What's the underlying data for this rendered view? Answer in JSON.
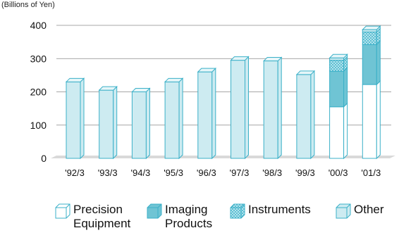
{
  "chart_data": {
    "type": "bar",
    "stacked": true,
    "unit_label": "(Billions of Yen)",
    "categories": [
      "'92/3",
      "'93/3",
      "'94/3",
      "'95/3",
      "'96/3",
      "'97/3",
      "'98/3",
      "'99/3",
      "'00/3",
      "'01/3"
    ],
    "y_ticks": [
      "400",
      "300",
      "200",
      "100",
      "0"
    ],
    "ylim": [
      0,
      400
    ],
    "grid": true,
    "legend_position": "bottom",
    "series": [
      {
        "name": "Precision Equipment",
        "fill": "#ffffff",
        "values": [
          0,
          0,
          0,
          0,
          0,
          0,
          0,
          0,
          155,
          222
        ]
      },
      {
        "name": "Imaging Products",
        "fill": "#6fc4d4",
        "values": [
          0,
          0,
          0,
          0,
          0,
          0,
          0,
          0,
          107,
          120
        ]
      },
      {
        "name": "Instruments",
        "fill": "#b6e3ec",
        "pattern": "hatch",
        "values": [
          0,
          0,
          0,
          0,
          0,
          0,
          0,
          0,
          33,
          38
        ]
      },
      {
        "name": "Other",
        "fill": "#cdebf1",
        "values": [
          230,
          205,
          200,
          230,
          260,
          295,
          293,
          252,
          7,
          7
        ]
      }
    ],
    "legend": [
      {
        "label": "Precision\nEquipment",
        "series": 0
      },
      {
        "label": "Imaging\nProducts",
        "series": 1
      },
      {
        "label": "Instruments",
        "series": 2
      },
      {
        "label": "Other",
        "series": 3
      }
    ],
    "colors": {
      "edge": "#3bb0c8",
      "grid": "#8a8a8a",
      "floor": "#d9d9d9",
      "text": "#111111"
    }
  }
}
